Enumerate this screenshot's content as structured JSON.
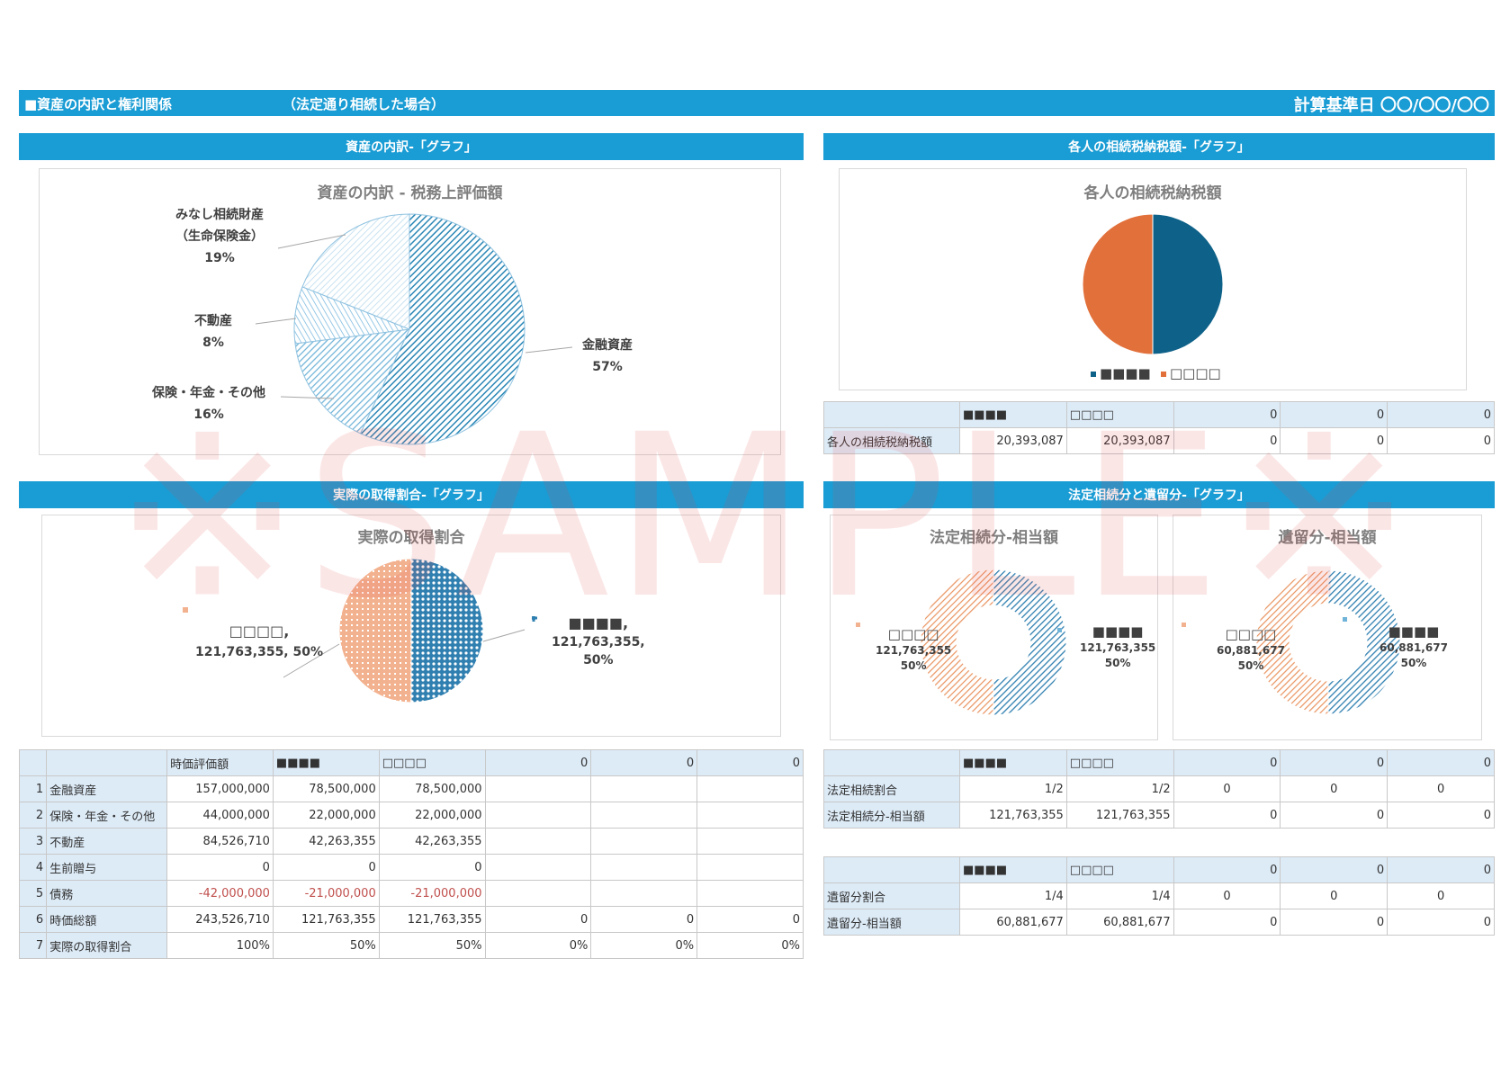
{
  "header": {
    "title": "■資産の内訳と権利関係",
    "subtitle": "（法定通り相続した場合）",
    "date_label": "計算基準日 〇〇/〇〇/〇〇"
  },
  "sections": {
    "asset_breakdown": "資産の内訳-「グラフ」",
    "tax_each": "各人の相続税納税額-「グラフ」",
    "actual_share": "実際の取得割合-「グラフ」",
    "legal_share": "法定相続分と遺留分-「グラフ」"
  },
  "watermark": "※SAMPLE※",
  "colors": {
    "accent": "#1a9cd4",
    "blue": "#0e6188",
    "orange": "#e2703a",
    "header_cell": "#ddebf7",
    "negative": "#c0504d"
  },
  "chart_data": [
    {
      "id": "asset-pie",
      "type": "pie",
      "title": "資産の内訳 - 税務上評価額",
      "categories": [
        "金融資産",
        "保険・年金・その他",
        "不動産",
        "みなし相続財産（生命保険金）"
      ],
      "values": [
        57,
        16,
        8,
        19
      ],
      "labels": [
        {
          "name": "金融資産",
          "pct": "57%"
        },
        {
          "name": "保険・年金・その他",
          "pct": "16%"
        },
        {
          "name": "不動産",
          "pct": "8%"
        },
        {
          "name": "みなし相続財産",
          "name2": "（生命保険金）",
          "pct": "19%"
        }
      ]
    },
    {
      "id": "tax-pie",
      "type": "pie",
      "title": "各人の相続税納税額",
      "categories": [
        "■■■■",
        "□□□□"
      ],
      "values": [
        20393087,
        20393087
      ],
      "legend": [
        "■■■■",
        "□□□□"
      ],
      "legend_position": "bottom"
    },
    {
      "id": "actual-pie",
      "type": "pie",
      "title": "実際の取得割合",
      "categories": [
        "■■■■",
        "□□□□"
      ],
      "values": [
        121763355,
        121763355
      ],
      "labels": [
        {
          "line1": "■■■■,",
          "line2": "121,763,355,",
          "line3": "50%"
        },
        {
          "line1": "□□□□,",
          "line2": "121,763,355, 50%"
        }
      ]
    },
    {
      "id": "legal-donut",
      "type": "pie",
      "title": "法定相続分-相当額",
      "categories": [
        "■■■■",
        "□□□□"
      ],
      "values": [
        121763355,
        121763355
      ],
      "labels": [
        {
          "name": "■■■■",
          "value": "121,763,355",
          "pct": "50%"
        },
        {
          "name": "□□□□",
          "value": "121,763,355",
          "pct": "50%"
        }
      ]
    },
    {
      "id": "reserve-donut",
      "type": "pie",
      "title": "遺留分-相当額",
      "categories": [
        "■■■■",
        "□□□□"
      ],
      "values": [
        60881677,
        60881677
      ],
      "labels": [
        {
          "name": "■■■■",
          "value": "60,881,677",
          "pct": "50%"
        },
        {
          "name": "□□□□",
          "value": "60,881,677",
          "pct": "50%"
        }
      ]
    }
  ],
  "tax_table": {
    "headers": [
      "■■■■",
      "□□□□",
      "0",
      "0",
      "0"
    ],
    "row": {
      "label": "各人の相続税納税額",
      "values": [
        "20,393,087",
        "20,393,087",
        "0",
        "0",
        "0"
      ]
    }
  },
  "asset_table": {
    "headers": [
      "時価評価額",
      "■■■■",
      "□□□□",
      "0",
      "0",
      "0"
    ],
    "rows": [
      {
        "no": "1",
        "label": "金融資産",
        "values": [
          "157,000,000",
          "78,500,000",
          "78,500,000",
          "",
          "",
          ""
        ]
      },
      {
        "no": "2",
        "label": "保険・年金・その他",
        "values": [
          "44,000,000",
          "22,000,000",
          "22,000,000",
          "",
          "",
          ""
        ]
      },
      {
        "no": "3",
        "label": "不動産",
        "values": [
          "84,526,710",
          "42,263,355",
          "42,263,355",
          "",
          "",
          ""
        ]
      },
      {
        "no": "4",
        "label": "生前贈与",
        "values": [
          "0",
          "0",
          "0",
          "",
          "",
          ""
        ]
      },
      {
        "no": "5",
        "label": "債務",
        "values": [
          "-42,000,000",
          "-21,000,000",
          "-21,000,000",
          "",
          "",
          ""
        ],
        "negative": true
      },
      {
        "no": "6",
        "label": "時価総額",
        "values": [
          "243,526,710",
          "121,763,355",
          "121,763,355",
          "0",
          "0",
          "0"
        ]
      },
      {
        "no": "7",
        "label": "実際の取得割合",
        "values": [
          "100%",
          "50%",
          "50%",
          "0%",
          "0%",
          "0%"
        ]
      }
    ]
  },
  "legal_table": {
    "headers": [
      "■■■■",
      "□□□□",
      "0",
      "0",
      "0"
    ],
    "rows": [
      {
        "label": "法定相続割合",
        "values": [
          "1/2",
          "1/2",
          "0",
          "0",
          "0"
        ]
      },
      {
        "label": "法定相続分-相当額",
        "values": [
          "121,763,355",
          "121,763,355",
          "0",
          "0",
          "0"
        ]
      }
    ]
  },
  "reserve_table": {
    "headers": [
      "■■■■",
      "□□□□",
      "0",
      "0",
      "0"
    ],
    "rows": [
      {
        "label": "遺留分割合",
        "values": [
          "1/4",
          "1/4",
          "0",
          "0",
          "0"
        ]
      },
      {
        "label": "遺留分-相当額",
        "values": [
          "60,881,677",
          "60,881,677",
          "0",
          "0",
          "0"
        ]
      }
    ]
  }
}
